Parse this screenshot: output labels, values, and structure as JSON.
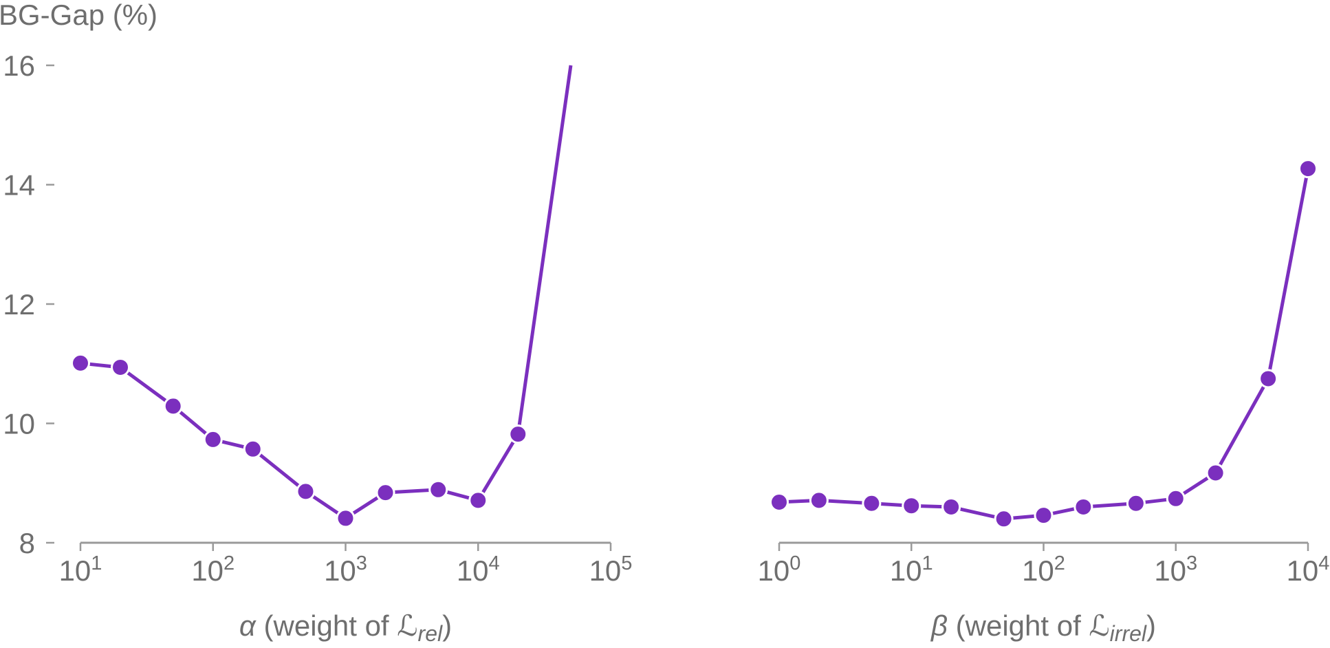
{
  "colors": {
    "line": "#7B2FBE",
    "axis": "#9a9a9a",
    "text": "#6e6e6e",
    "marker_edge": "#ffffff"
  },
  "chart_data": [
    {
      "type": "line",
      "ylabel": "BG-Gap (%)",
      "xlabel_parts": {
        "symbol": "α",
        "prefix": " (weight of ",
        "script": "ℒ",
        "sub": "rel",
        "suffix": ")"
      },
      "xscale": "log",
      "xlim": [
        10,
        100000
      ],
      "ylim": [
        8,
        16
      ],
      "yticks": [
        8,
        10,
        12,
        14,
        16
      ],
      "xticks": [
        {
          "value": 10,
          "base": "10",
          "exp": "1"
        },
        {
          "value": 100,
          "base": "10",
          "exp": "2"
        },
        {
          "value": 1000,
          "base": "10",
          "exp": "3"
        },
        {
          "value": 10000,
          "base": "10",
          "exp": "4"
        },
        {
          "value": 100000,
          "base": "10",
          "exp": "5"
        }
      ],
      "series": [
        {
          "x": [
            10,
            20,
            50,
            100,
            200,
            500,
            1000,
            2000,
            5000,
            10000,
            20000,
            50000
          ],
          "y": [
            11.01,
            10.94,
            10.29,
            9.73,
            9.57,
            8.86,
            8.41,
            8.84,
            8.89,
            8.71,
            9.82,
            16.0
          ],
          "markers": [
            true,
            true,
            true,
            true,
            true,
            true,
            true,
            true,
            true,
            true,
            true,
            false
          ]
        }
      ]
    },
    {
      "type": "line",
      "xlabel_parts": {
        "symbol": "β",
        "prefix": " (weight of ",
        "script": "ℒ",
        "sub": "irrel",
        "suffix": ")"
      },
      "xscale": "log",
      "xlim": [
        1,
        10000
      ],
      "ylim": [
        8,
        16
      ],
      "xticks": [
        {
          "value": 1,
          "base": "10",
          "exp": "0"
        },
        {
          "value": 10,
          "base": "10",
          "exp": "1"
        },
        {
          "value": 100,
          "base": "10",
          "exp": "2"
        },
        {
          "value": 1000,
          "base": "10",
          "exp": "3"
        },
        {
          "value": 10000,
          "base": "10",
          "exp": "4"
        }
      ],
      "series": [
        {
          "x": [
            1,
            2,
            5,
            10,
            20,
            50,
            100,
            200,
            500,
            1000,
            2000,
            5000,
            10000
          ],
          "y": [
            8.68,
            8.71,
            8.66,
            8.62,
            8.6,
            8.4,
            8.46,
            8.6,
            8.66,
            8.74,
            9.17,
            10.75,
            14.27
          ],
          "markers": [
            true,
            true,
            true,
            true,
            true,
            true,
            true,
            true,
            true,
            true,
            true,
            true,
            true
          ]
        }
      ]
    }
  ]
}
